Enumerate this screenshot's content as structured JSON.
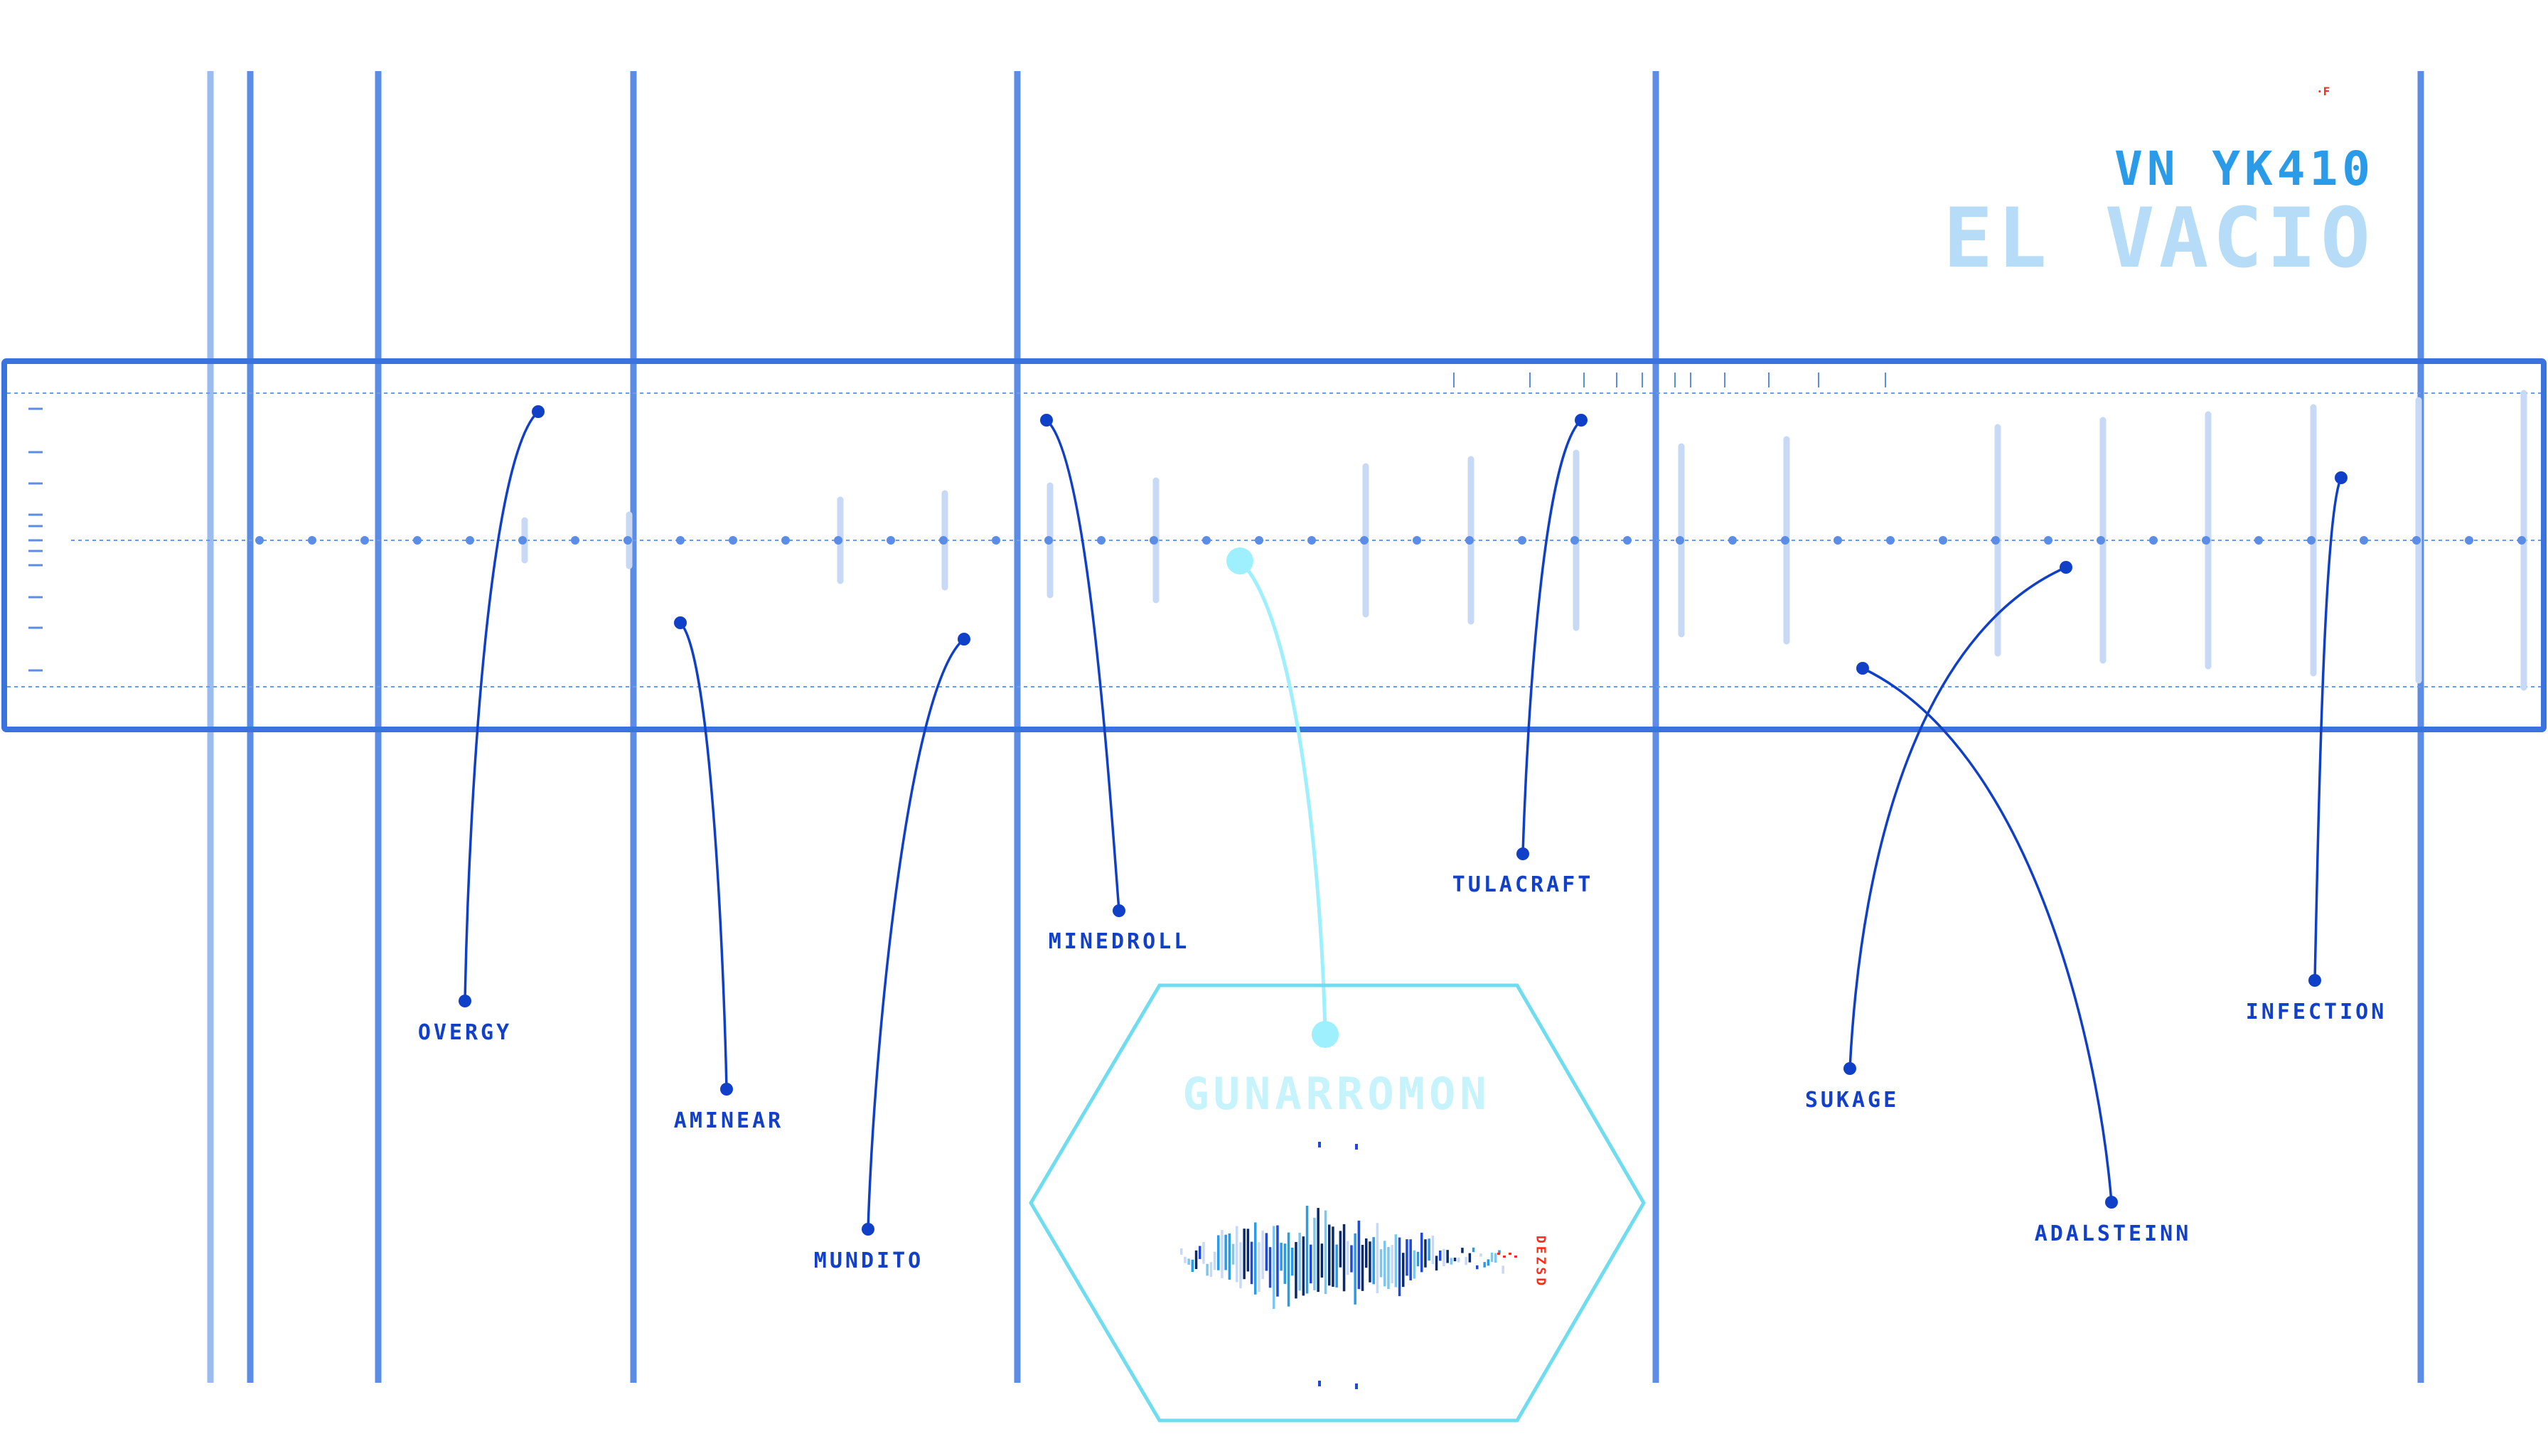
{
  "header": {
    "subtitle": "VN YK410",
    "title": "EL VACIO",
    "corner_mark": "·F"
  },
  "colors": {
    "primary": "#1f49d6",
    "pillar": "#5b8de6",
    "pillar_light": "#9bbcf0",
    "faint_bar": "#c8d9f5",
    "highlight": "#9ef0ff",
    "accent_red": "#ff2a1a",
    "title_light": "#b7dcf7",
    "title_mid": "#2a9be8"
  },
  "nodes": [
    {
      "id": "overgy",
      "label": "OVERGY"
    },
    {
      "id": "amineear",
      "label": "AMINEAR"
    },
    {
      "id": "mundito",
      "label": "MUNDITO"
    },
    {
      "id": "minedroll",
      "label": "MINEDROLL"
    },
    {
      "id": "tulacraft",
      "label": "TULACRAFT"
    },
    {
      "id": "sukage",
      "label": "SUKAGE"
    },
    {
      "id": "adalsteinn",
      "label": "ADALSTEINN"
    },
    {
      "id": "infection",
      "label": "INFECTION"
    }
  ],
  "featured": {
    "id": "gunarromon",
    "label": "GUNARROMON",
    "side_text": "DEZSD"
  },
  "icons": {
    "timeline": "timeline-track-icon",
    "waveform": "audio-waveform-icon"
  }
}
